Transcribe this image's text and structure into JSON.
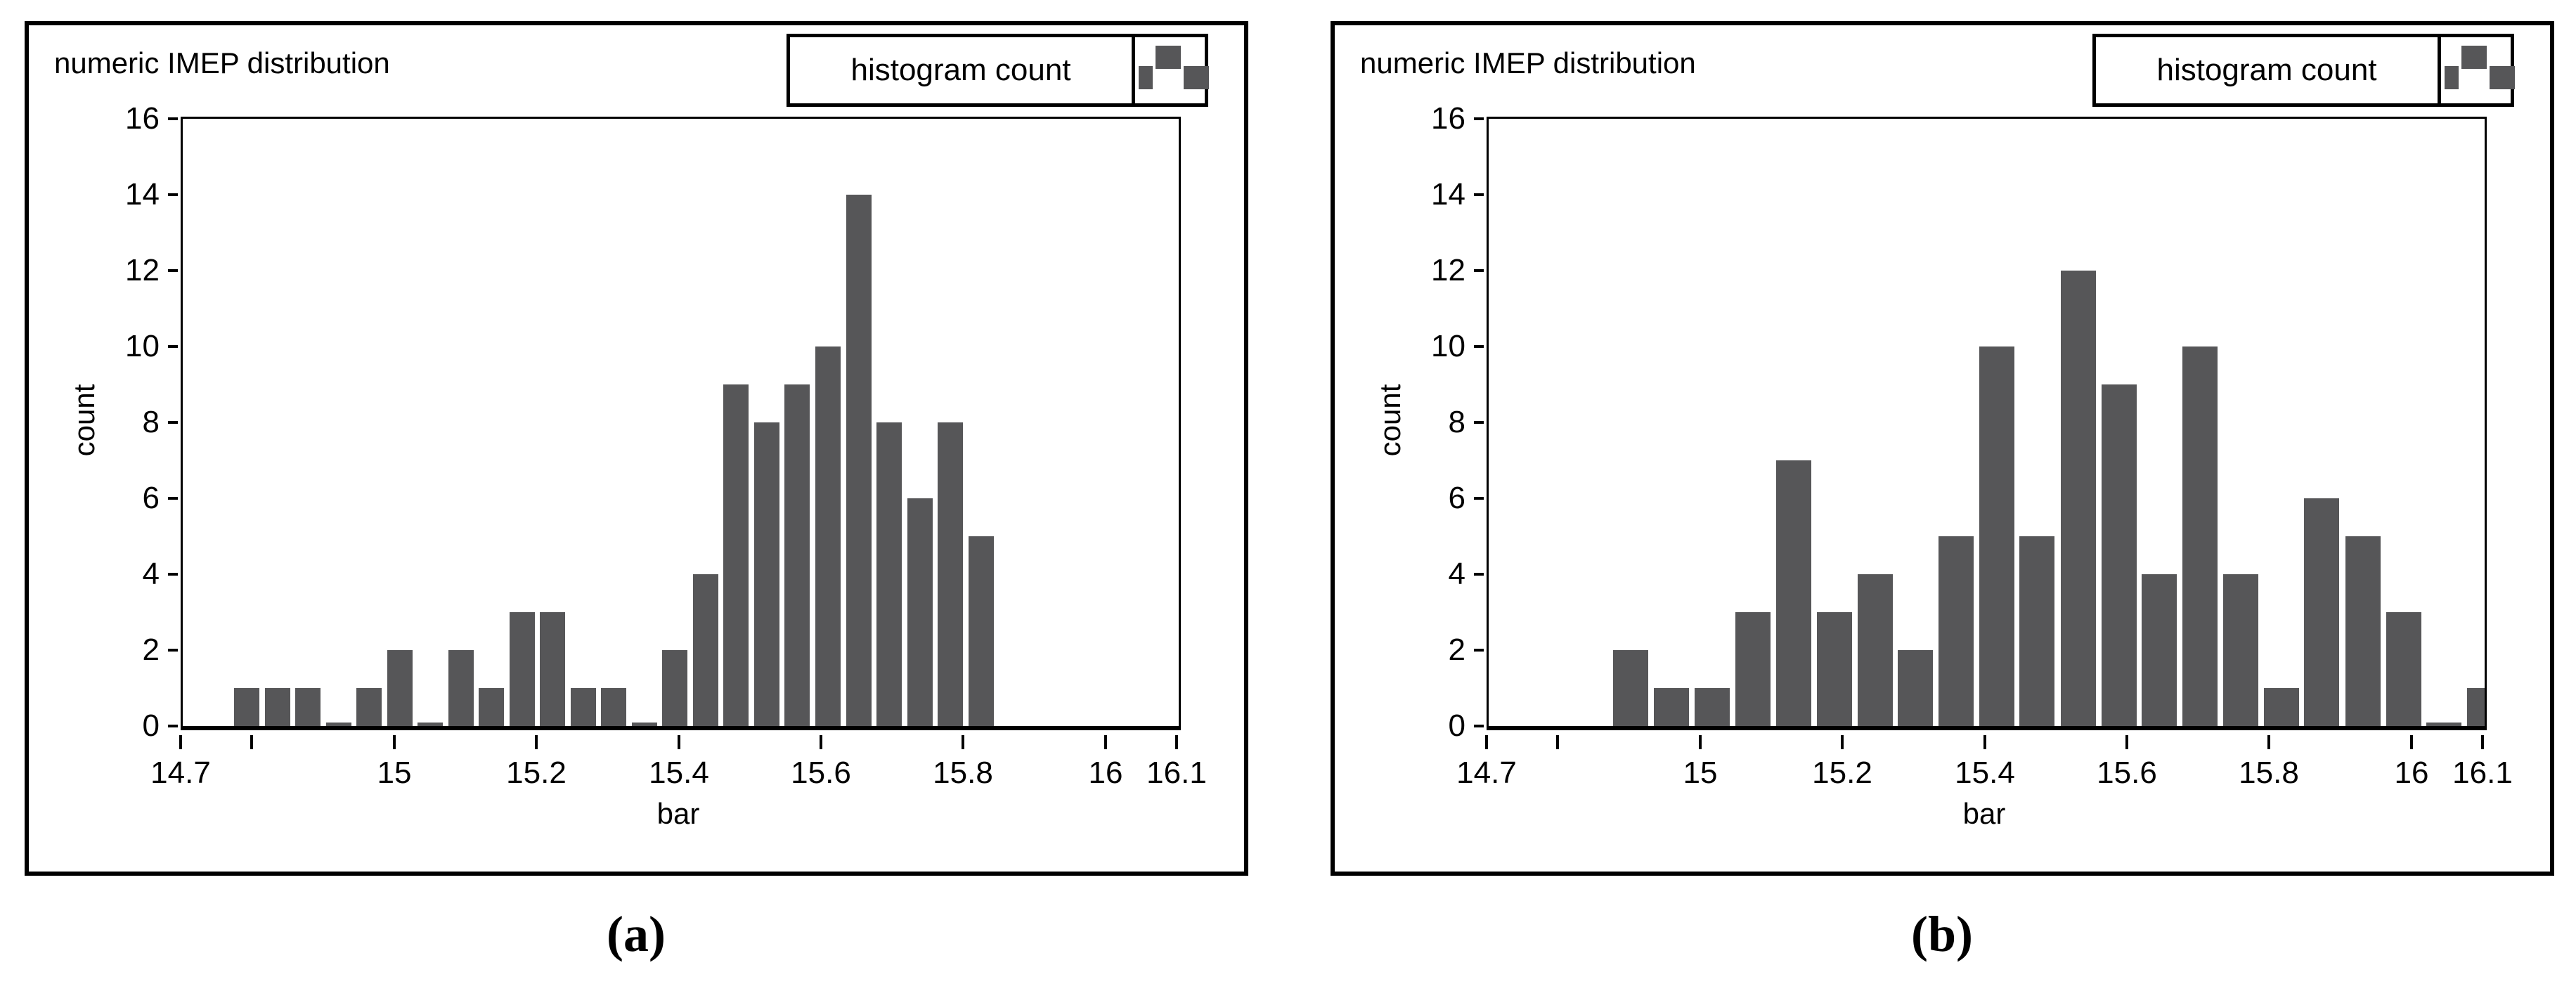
{
  "figure": {
    "panels": [
      {
        "id": "a",
        "title": "numeric IMEP distribution",
        "legend_label": "histogram count",
        "xlabel": "bar",
        "ylabel": "count",
        "caption": "(a)"
      },
      {
        "id": "b",
        "title": "numeric IMEP distribution",
        "legend_label": "histogram count",
        "xlabel": "bar",
        "ylabel": "count",
        "caption": "(b)"
      }
    ],
    "colors": {
      "bar": "#565658",
      "axis": "#000000",
      "background": "#ffffff"
    }
  },
  "chart_data": [
    {
      "type": "bar",
      "subtype": "histogram",
      "panel": "a",
      "title": "numeric IMEP distribution",
      "legend": "histogram count",
      "xlabel": "bar",
      "ylabel": "count",
      "xlim": [
        14.7,
        16.1
      ],
      "ylim": [
        0,
        16
      ],
      "grid": false,
      "legend_position": "top-right",
      "xticks": [
        {
          "v": 14.7,
          "label": "14.7"
        },
        {
          "v": 14.8,
          "label": ""
        },
        {
          "v": 15.0,
          "label": "15"
        },
        {
          "v": 15.2,
          "label": "15.2"
        },
        {
          "v": 15.4,
          "label": "15.4"
        },
        {
          "v": 15.6,
          "label": "15.6"
        },
        {
          "v": 15.8,
          "label": "15.8"
        },
        {
          "v": 16.0,
          "label": "16"
        },
        {
          "v": 16.1,
          "label": "16.1"
        }
      ],
      "yticks": [
        {
          "v": 0,
          "label": "0"
        },
        {
          "v": 2,
          "label": "2"
        },
        {
          "v": 4,
          "label": "4"
        },
        {
          "v": 6,
          "label": "6"
        },
        {
          "v": 8,
          "label": "8"
        },
        {
          "v": 10,
          "label": "10"
        },
        {
          "v": 12,
          "label": "12"
        },
        {
          "v": 14,
          "label": "14"
        },
        {
          "v": 16,
          "label": "16"
        }
      ],
      "bin_width": 0.043,
      "bins": [
        [
          14.79,
          1
        ],
        [
          14.833,
          1
        ],
        [
          14.876,
          1
        ],
        [
          14.919,
          0
        ],
        [
          14.962,
          1
        ],
        [
          15.005,
          2
        ],
        [
          15.048,
          0
        ],
        [
          15.091,
          2
        ],
        [
          15.134,
          1
        ],
        [
          15.177,
          3
        ],
        [
          15.22,
          3
        ],
        [
          15.263,
          1
        ],
        [
          15.306,
          1
        ],
        [
          15.349,
          0
        ],
        [
          15.392,
          2
        ],
        [
          15.435,
          4
        ],
        [
          15.478,
          9
        ],
        [
          15.521,
          8
        ],
        [
          15.564,
          9
        ],
        [
          15.607,
          10
        ],
        [
          15.65,
          14
        ],
        [
          15.693,
          8
        ],
        [
          15.736,
          6
        ],
        [
          15.779,
          8
        ],
        [
          15.822,
          5
        ]
      ]
    },
    {
      "type": "bar",
      "subtype": "histogram",
      "panel": "b",
      "title": "numeric IMEP distribution",
      "legend": "histogram count",
      "xlabel": "bar",
      "ylabel": "count",
      "xlim": [
        14.7,
        16.1
      ],
      "ylim": [
        0,
        16
      ],
      "grid": false,
      "legend_position": "top-right",
      "xticks": [
        {
          "v": 14.7,
          "label": "14.7"
        },
        {
          "v": 14.8,
          "label": ""
        },
        {
          "v": 15.0,
          "label": "15"
        },
        {
          "v": 15.2,
          "label": "15.2"
        },
        {
          "v": 15.4,
          "label": "15.4"
        },
        {
          "v": 15.6,
          "label": "15.6"
        },
        {
          "v": 15.8,
          "label": "15.8"
        },
        {
          "v": 16.0,
          "label": "16"
        },
        {
          "v": 16.1,
          "label": "16.1"
        }
      ],
      "yticks": [
        {
          "v": 0,
          "label": "0"
        },
        {
          "v": 2,
          "label": "2"
        },
        {
          "v": 4,
          "label": "4"
        },
        {
          "v": 6,
          "label": "6"
        },
        {
          "v": 8,
          "label": "8"
        },
        {
          "v": 10,
          "label": "10"
        },
        {
          "v": 12,
          "label": "12"
        },
        {
          "v": 14,
          "label": "14"
        },
        {
          "v": 16,
          "label": "16"
        }
      ],
      "bin_width": 0.057,
      "bins": [
        [
          14.9,
          2
        ],
        [
          14.957,
          1
        ],
        [
          15.014,
          1
        ],
        [
          15.071,
          3
        ],
        [
          15.129,
          7
        ],
        [
          15.186,
          3
        ],
        [
          15.243,
          4
        ],
        [
          15.3,
          2
        ],
        [
          15.357,
          5
        ],
        [
          15.414,
          10
        ],
        [
          15.471,
          5
        ],
        [
          15.529,
          12
        ],
        [
          15.586,
          9
        ],
        [
          15.643,
          4
        ],
        [
          15.7,
          10
        ],
        [
          15.757,
          4
        ],
        [
          15.814,
          1
        ],
        [
          15.871,
          6
        ],
        [
          15.929,
          5
        ],
        [
          15.986,
          3
        ],
        [
          16.043,
          0
        ],
        [
          16.1,
          1
        ]
      ]
    }
  ]
}
